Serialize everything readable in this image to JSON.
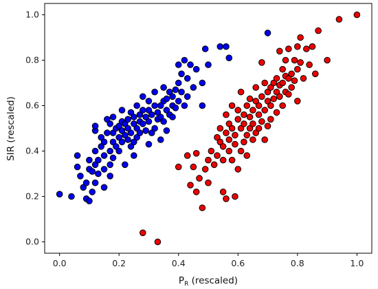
{
  "chart_data": {
    "type": "scatter",
    "xlabel": "P",
    "xlabel_subscript": "R",
    "xlabel_suffix": " (rescaled)",
    "ylabel": "SIR (rescaled)",
    "xlim": [
      -0.05,
      1.05
    ],
    "ylim": [
      -0.05,
      1.05
    ],
    "x_ticks": [
      0.0,
      0.2,
      0.4,
      0.6,
      0.8,
      1.0
    ],
    "y_ticks": [
      0.0,
      0.2,
      0.4,
      0.6,
      0.8,
      1.0
    ],
    "x_tick_labels": [
      "0.0",
      "0.2",
      "0.4",
      "0.6",
      "0.8",
      "1.0"
    ],
    "y_tick_labels": [
      "0.0",
      "0.2",
      "0.4",
      "0.6",
      "0.8",
      "1.0"
    ],
    "grid": false,
    "legend": "none",
    "series": [
      {
        "color": "#0000ee",
        "points": [
          [
            0.0,
            0.21
          ],
          [
            0.04,
            0.2
          ],
          [
            0.06,
            0.33
          ],
          [
            0.06,
            0.38
          ],
          [
            0.07,
            0.29
          ],
          [
            0.08,
            0.24
          ],
          [
            0.09,
            0.26
          ],
          [
            0.09,
            0.19
          ],
          [
            0.1,
            0.18
          ],
          [
            0.1,
            0.32
          ],
          [
            0.1,
            0.36
          ],
          [
            0.11,
            0.22
          ],
          [
            0.11,
            0.31
          ],
          [
            0.12,
            0.26
          ],
          [
            0.12,
            0.34
          ],
          [
            0.12,
            0.4
          ],
          [
            0.12,
            0.49
          ],
          [
            0.12,
            0.51
          ],
          [
            0.13,
            0.3
          ],
          [
            0.13,
            0.36
          ],
          [
            0.14,
            0.42
          ],
          [
            0.14,
            0.46
          ],
          [
            0.15,
            0.24
          ],
          [
            0.15,
            0.32
          ],
          [
            0.15,
            0.38
          ],
          [
            0.15,
            0.44
          ],
          [
            0.16,
            0.54
          ],
          [
            0.16,
            0.48
          ],
          [
            0.17,
            0.29
          ],
          [
            0.17,
            0.34
          ],
          [
            0.17,
            0.4
          ],
          [
            0.17,
            0.52
          ],
          [
            0.18,
            0.37
          ],
          [
            0.18,
            0.44
          ],
          [
            0.18,
            0.48
          ],
          [
            0.18,
            0.55
          ],
          [
            0.19,
            0.42
          ],
          [
            0.19,
            0.5
          ],
          [
            0.2,
            0.4
          ],
          [
            0.2,
            0.46
          ],
          [
            0.2,
            0.51
          ],
          [
            0.21,
            0.44
          ],
          [
            0.21,
            0.49
          ],
          [
            0.21,
            0.53
          ],
          [
            0.21,
            0.58
          ],
          [
            0.22,
            0.34
          ],
          [
            0.22,
            0.47
          ],
          [
            0.22,
            0.52
          ],
          [
            0.23,
            0.45
          ],
          [
            0.23,
            0.5
          ],
          [
            0.23,
            0.54
          ],
          [
            0.24,
            0.42
          ],
          [
            0.24,
            0.48
          ],
          [
            0.24,
            0.57
          ],
          [
            0.25,
            0.38
          ],
          [
            0.25,
            0.44
          ],
          [
            0.25,
            0.52
          ],
          [
            0.25,
            0.55
          ],
          [
            0.26,
            0.46
          ],
          [
            0.26,
            0.5
          ],
          [
            0.26,
            0.6
          ],
          [
            0.27,
            0.48
          ],
          [
            0.27,
            0.53
          ],
          [
            0.27,
            0.56
          ],
          [
            0.28,
            0.52
          ],
          [
            0.28,
            0.58
          ],
          [
            0.28,
            0.64
          ],
          [
            0.29,
            0.49
          ],
          [
            0.29,
            0.55
          ],
          [
            0.3,
            0.43
          ],
          [
            0.3,
            0.53
          ],
          [
            0.3,
            0.58
          ],
          [
            0.3,
            0.62
          ],
          [
            0.31,
            0.48
          ],
          [
            0.31,
            0.56
          ],
          [
            0.32,
            0.5
          ],
          [
            0.32,
            0.6
          ],
          [
            0.32,
            0.66
          ],
          [
            0.33,
            0.54
          ],
          [
            0.33,
            0.57
          ],
          [
            0.34,
            0.45
          ],
          [
            0.34,
            0.55
          ],
          [
            0.34,
            0.6
          ],
          [
            0.35,
            0.53
          ],
          [
            0.35,
            0.62
          ],
          [
            0.35,
            0.68
          ],
          [
            0.36,
            0.58
          ],
          [
            0.36,
            0.63
          ],
          [
            0.36,
            0.49
          ],
          [
            0.37,
            0.56
          ],
          [
            0.37,
            0.66
          ],
          [
            0.38,
            0.6
          ],
          [
            0.38,
            0.55
          ],
          [
            0.38,
            0.64
          ],
          [
            0.39,
            0.67
          ],
          [
            0.39,
            0.59
          ],
          [
            0.4,
            0.62
          ],
          [
            0.4,
            0.7
          ],
          [
            0.4,
            0.78
          ],
          [
            0.41,
            0.66
          ],
          [
            0.41,
            0.74
          ],
          [
            0.42,
            0.6
          ],
          [
            0.42,
            0.8
          ],
          [
            0.43,
            0.64
          ],
          [
            0.43,
            0.72
          ],
          [
            0.44,
            0.78
          ],
          [
            0.45,
            0.68
          ],
          [
            0.46,
            0.76
          ],
          [
            0.48,
            0.6
          ],
          [
            0.48,
            0.7
          ],
          [
            0.49,
            0.85
          ],
          [
            0.5,
            0.78
          ],
          [
            0.54,
            0.86
          ],
          [
            0.56,
            0.86
          ],
          [
            0.57,
            0.81
          ],
          [
            0.7,
            0.92
          ]
        ]
      },
      {
        "color": "#ee0000",
        "points": [
          [
            0.28,
            0.04
          ],
          [
            0.33,
            0.0
          ],
          [
            0.4,
            0.33
          ],
          [
            0.43,
            0.38
          ],
          [
            0.44,
            0.25
          ],
          [
            0.45,
            0.33
          ],
          [
            0.46,
            0.39
          ],
          [
            0.46,
            0.22
          ],
          [
            0.47,
            0.28
          ],
          [
            0.48,
            0.15
          ],
          [
            0.49,
            0.32
          ],
          [
            0.5,
            0.36
          ],
          [
            0.5,
            0.26
          ],
          [
            0.51,
            0.4
          ],
          [
            0.52,
            0.34
          ],
          [
            0.53,
            0.46
          ],
          [
            0.53,
            0.38
          ],
          [
            0.54,
            0.44
          ],
          [
            0.54,
            0.5
          ],
          [
            0.55,
            0.22
          ],
          [
            0.55,
            0.36
          ],
          [
            0.55,
            0.42
          ],
          [
            0.56,
            0.48
          ],
          [
            0.56,
            0.19
          ],
          [
            0.56,
            0.56
          ],
          [
            0.57,
            0.4
          ],
          [
            0.57,
            0.45
          ],
          [
            0.57,
            0.52
          ],
          [
            0.58,
            0.36
          ],
          [
            0.58,
            0.5
          ],
          [
            0.58,
            0.6
          ],
          [
            0.59,
            0.2
          ],
          [
            0.59,
            0.43
          ],
          [
            0.59,
            0.47
          ],
          [
            0.6,
            0.32
          ],
          [
            0.6,
            0.54
          ],
          [
            0.6,
            0.58
          ],
          [
            0.61,
            0.4
          ],
          [
            0.61,
            0.5
          ],
          [
            0.61,
            0.66
          ],
          [
            0.62,
            0.44
          ],
          [
            0.62,
            0.52
          ],
          [
            0.62,
            0.56
          ],
          [
            0.63,
            0.47
          ],
          [
            0.63,
            0.6
          ],
          [
            0.63,
            0.38
          ],
          [
            0.64,
            0.5
          ],
          [
            0.64,
            0.55
          ],
          [
            0.64,
            0.63
          ],
          [
            0.65,
            0.45
          ],
          [
            0.65,
            0.58
          ],
          [
            0.65,
            0.52
          ],
          [
            0.66,
            0.48
          ],
          [
            0.66,
            0.62
          ],
          [
            0.66,
            0.68
          ],
          [
            0.67,
            0.5
          ],
          [
            0.67,
            0.56
          ],
          [
            0.67,
            0.6
          ],
          [
            0.68,
            0.53
          ],
          [
            0.68,
            0.64
          ],
          [
            0.68,
            0.79
          ],
          [
            0.69,
            0.45
          ],
          [
            0.69,
            0.58
          ],
          [
            0.69,
            0.7
          ],
          [
            0.7,
            0.51
          ],
          [
            0.7,
            0.62
          ],
          [
            0.7,
            0.66
          ],
          [
            0.71,
            0.6
          ],
          [
            0.71,
            0.68
          ],
          [
            0.71,
            0.54
          ],
          [
            0.72,
            0.7
          ],
          [
            0.72,
            0.63
          ],
          [
            0.73,
            0.57
          ],
          [
            0.73,
            0.66
          ],
          [
            0.73,
            0.72
          ],
          [
            0.74,
            0.64
          ],
          [
            0.74,
            0.69
          ],
          [
            0.74,
            0.84
          ],
          [
            0.75,
            0.7
          ],
          [
            0.75,
            0.6
          ],
          [
            0.75,
            0.76
          ],
          [
            0.76,
            0.73
          ],
          [
            0.76,
            0.66
          ],
          [
            0.76,
            0.8
          ],
          [
            0.77,
            0.72
          ],
          [
            0.77,
            0.65
          ],
          [
            0.77,
            0.85
          ],
          [
            0.78,
            0.74
          ],
          [
            0.78,
            0.68
          ],
          [
            0.79,
            0.8
          ],
          [
            0.79,
            0.71
          ],
          [
            0.8,
            0.86
          ],
          [
            0.8,
            0.62
          ],
          [
            0.8,
            0.76
          ],
          [
            0.81,
            0.79
          ],
          [
            0.81,
            0.9
          ],
          [
            0.82,
            0.72
          ],
          [
            0.83,
            0.85
          ],
          [
            0.84,
            0.78
          ],
          [
            0.85,
            0.86
          ],
          [
            0.86,
            0.74
          ],
          [
            0.87,
            0.93
          ],
          [
            0.9,
            0.8
          ],
          [
            0.94,
            0.98
          ],
          [
            1.0,
            1.0
          ]
        ]
      }
    ]
  }
}
